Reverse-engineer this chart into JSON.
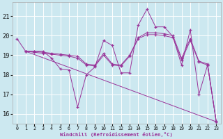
{
  "xlabel": "Windchill (Refroidissement éolien,°C)",
  "background_color": "#cce8f0",
  "line_color": "#993399",
  "grid_color": "#ffffff",
  "xlim": [
    -0.5,
    23.5
  ],
  "ylim": [
    15.5,
    21.7
  ],
  "xticks": [
    0,
    1,
    2,
    3,
    4,
    5,
    6,
    7,
    8,
    9,
    10,
    11,
    12,
    13,
    14,
    15,
    16,
    17,
    18,
    19,
    20,
    21,
    22,
    23
  ],
  "yticks": [
    16,
    17,
    18,
    19,
    20,
    21
  ],
  "line1": [
    [
      0,
      19.85
    ],
    [
      1,
      19.2
    ],
    [
      2,
      19.2
    ],
    [
      3,
      19.2
    ],
    [
      4,
      18.85
    ],
    [
      5,
      18.3
    ],
    [
      6,
      18.25
    ],
    [
      7,
      16.35
    ],
    [
      8,
      18.0
    ],
    [
      9,
      18.4
    ],
    [
      10,
      19.75
    ],
    [
      11,
      19.5
    ],
    [
      12,
      18.1
    ],
    [
      13,
      18.1
    ],
    [
      14,
      20.55
    ],
    [
      15,
      21.35
    ],
    [
      16,
      20.45
    ],
    [
      17,
      20.45
    ],
    [
      18,
      19.95
    ],
    [
      19,
      18.5
    ],
    [
      20,
      20.3
    ],
    [
      21,
      17.0
    ],
    [
      22,
      18.5
    ],
    [
      23,
      15.6
    ]
  ],
  "line2": [
    [
      1,
      19.2
    ],
    [
      2,
      19.2
    ],
    [
      3,
      19.15
    ],
    [
      4,
      19.1
    ],
    [
      5,
      19.05
    ],
    [
      6,
      19.0
    ],
    [
      7,
      18.95
    ],
    [
      8,
      18.55
    ],
    [
      9,
      18.5
    ],
    [
      10,
      19.1
    ],
    [
      11,
      18.55
    ],
    [
      12,
      18.5
    ],
    [
      13,
      19.0
    ],
    [
      14,
      19.9
    ],
    [
      15,
      20.15
    ],
    [
      16,
      20.15
    ],
    [
      17,
      20.1
    ],
    [
      18,
      20.0
    ],
    [
      19,
      18.85
    ],
    [
      20,
      19.85
    ],
    [
      21,
      18.7
    ],
    [
      22,
      18.55
    ],
    [
      23,
      15.6
    ]
  ],
  "line3": [
    [
      1,
      19.2
    ],
    [
      2,
      19.15
    ],
    [
      3,
      19.1
    ],
    [
      4,
      19.05
    ],
    [
      5,
      19.0
    ],
    [
      6,
      18.95
    ],
    [
      7,
      18.85
    ],
    [
      8,
      18.5
    ],
    [
      9,
      18.45
    ],
    [
      10,
      19.0
    ],
    [
      11,
      18.5
    ],
    [
      12,
      18.45
    ],
    [
      13,
      18.95
    ],
    [
      14,
      19.85
    ],
    [
      15,
      20.05
    ],
    [
      16,
      20.05
    ],
    [
      17,
      20.0
    ],
    [
      18,
      19.9
    ],
    [
      19,
      18.75
    ],
    [
      20,
      19.75
    ],
    [
      21,
      18.65
    ],
    [
      22,
      18.5
    ],
    [
      23,
      15.6
    ]
  ],
  "line4": [
    [
      1,
      19.2
    ],
    [
      23,
      15.6
    ]
  ]
}
